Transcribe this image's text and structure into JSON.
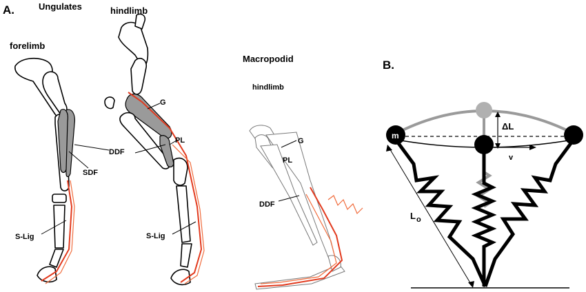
{
  "panel_a": {
    "label": "A.",
    "ungulates": {
      "title": "Ungulates",
      "forelimb_label": "forelimb",
      "hindlimb_label": "hindlimb",
      "labels": {
        "ddf": "DDF",
        "sdf": "SDF",
        "s_lig_fore": "S-Lig",
        "g": "G",
        "pl": "PL",
        "s_lig_hind": "S-Lig"
      }
    },
    "macropodid": {
      "title": "Macropodid",
      "hindlimb_label": "hindlimb",
      "labels": {
        "g": "G",
        "pl": "PL",
        "ddf": "DDF"
      }
    }
  },
  "panel_b": {
    "label": "B.",
    "mass_label": "m",
    "delta_l": "ΔL",
    "velocity": "v",
    "rest_length": "L",
    "rest_length_sub": "o"
  },
  "colors": {
    "tendon": "#e23a1e",
    "muscle": "#9a9a9a",
    "ghost": "#b0b0b0"
  }
}
